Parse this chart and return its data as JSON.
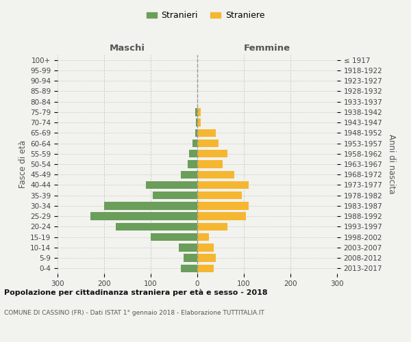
{
  "age_groups": [
    "0-4",
    "5-9",
    "10-14",
    "15-19",
    "20-24",
    "25-29",
    "30-34",
    "35-39",
    "40-44",
    "45-49",
    "50-54",
    "55-59",
    "60-64",
    "65-69",
    "70-74",
    "75-79",
    "80-84",
    "85-89",
    "90-94",
    "95-99",
    "100+"
  ],
  "birth_years": [
    "2013-2017",
    "2008-2012",
    "2003-2007",
    "1998-2002",
    "1993-1997",
    "1988-1992",
    "1983-1987",
    "1978-1982",
    "1973-1977",
    "1968-1972",
    "1963-1967",
    "1958-1962",
    "1953-1957",
    "1948-1952",
    "1943-1947",
    "1938-1942",
    "1933-1937",
    "1928-1932",
    "1923-1927",
    "1918-1922",
    "≤ 1917"
  ],
  "maschi": [
    35,
    30,
    40,
    100,
    175,
    230,
    200,
    95,
    110,
    35,
    20,
    18,
    10,
    5,
    3,
    5,
    0,
    0,
    0,
    0,
    0
  ],
  "femmine": [
    35,
    40,
    35,
    25,
    65,
    105,
    110,
    95,
    110,
    80,
    55,
    65,
    45,
    40,
    7,
    7,
    0,
    0,
    0,
    0,
    0
  ],
  "maschi_color": "#6a9e5a",
  "femmine_color": "#f5b731",
  "background_color": "#f2f2ee",
  "grid_color": "#cccccc",
  "zero_line_color": "#999999",
  "title": "Popolazione per cittadinanza straniera per età e sesso - 2018",
  "subtitle": "COMUNE DI CASSINO (FR) - Dati ISTAT 1° gennaio 2018 - Elaborazione TUTTITALIA.IT",
  "header_left": "Maschi",
  "header_right": "Femmine",
  "ylabel_left": "Fasce di età",
  "ylabel_right": "Anni di nascita",
  "legend_stranieri": "Stranieri",
  "legend_straniere": "Straniere",
  "xlim": 300
}
